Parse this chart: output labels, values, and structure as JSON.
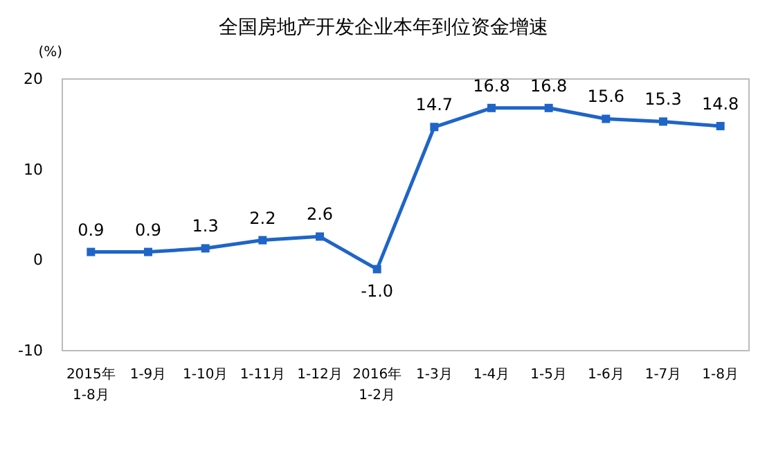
{
  "chart_data": {
    "type": "line",
    "title": "全国房地产开发企业本年到位资金增速",
    "ylabel": "(%)",
    "categories": [
      "2015年\n1-8月",
      "1-9月",
      "1-10月",
      "1-11月",
      "1-12月",
      "2016年\n1-2月",
      "1-3月",
      "1-4月",
      "1-5月",
      "1-6月",
      "1-7月",
      "1-8月"
    ],
    "series": [
      {
        "color": "#1f64c8",
        "values": [
          0.9,
          0.9,
          1.3,
          2.2,
          2.6,
          -1.0,
          14.7,
          16.8,
          16.8,
          15.6,
          15.3,
          14.8
        ],
        "value_labels": [
          "0.9",
          "0.9",
          "1.3",
          "2.2",
          "2.6",
          "-1.0",
          "14.7",
          "16.8",
          "16.8",
          "15.6",
          "15.3",
          "14.8"
        ]
      }
    ],
    "ylim": [
      -10,
      20
    ],
    "yticks": [
      -10,
      0,
      10,
      20
    ],
    "grid": false,
    "marker": "square",
    "line_style": "solid"
  }
}
